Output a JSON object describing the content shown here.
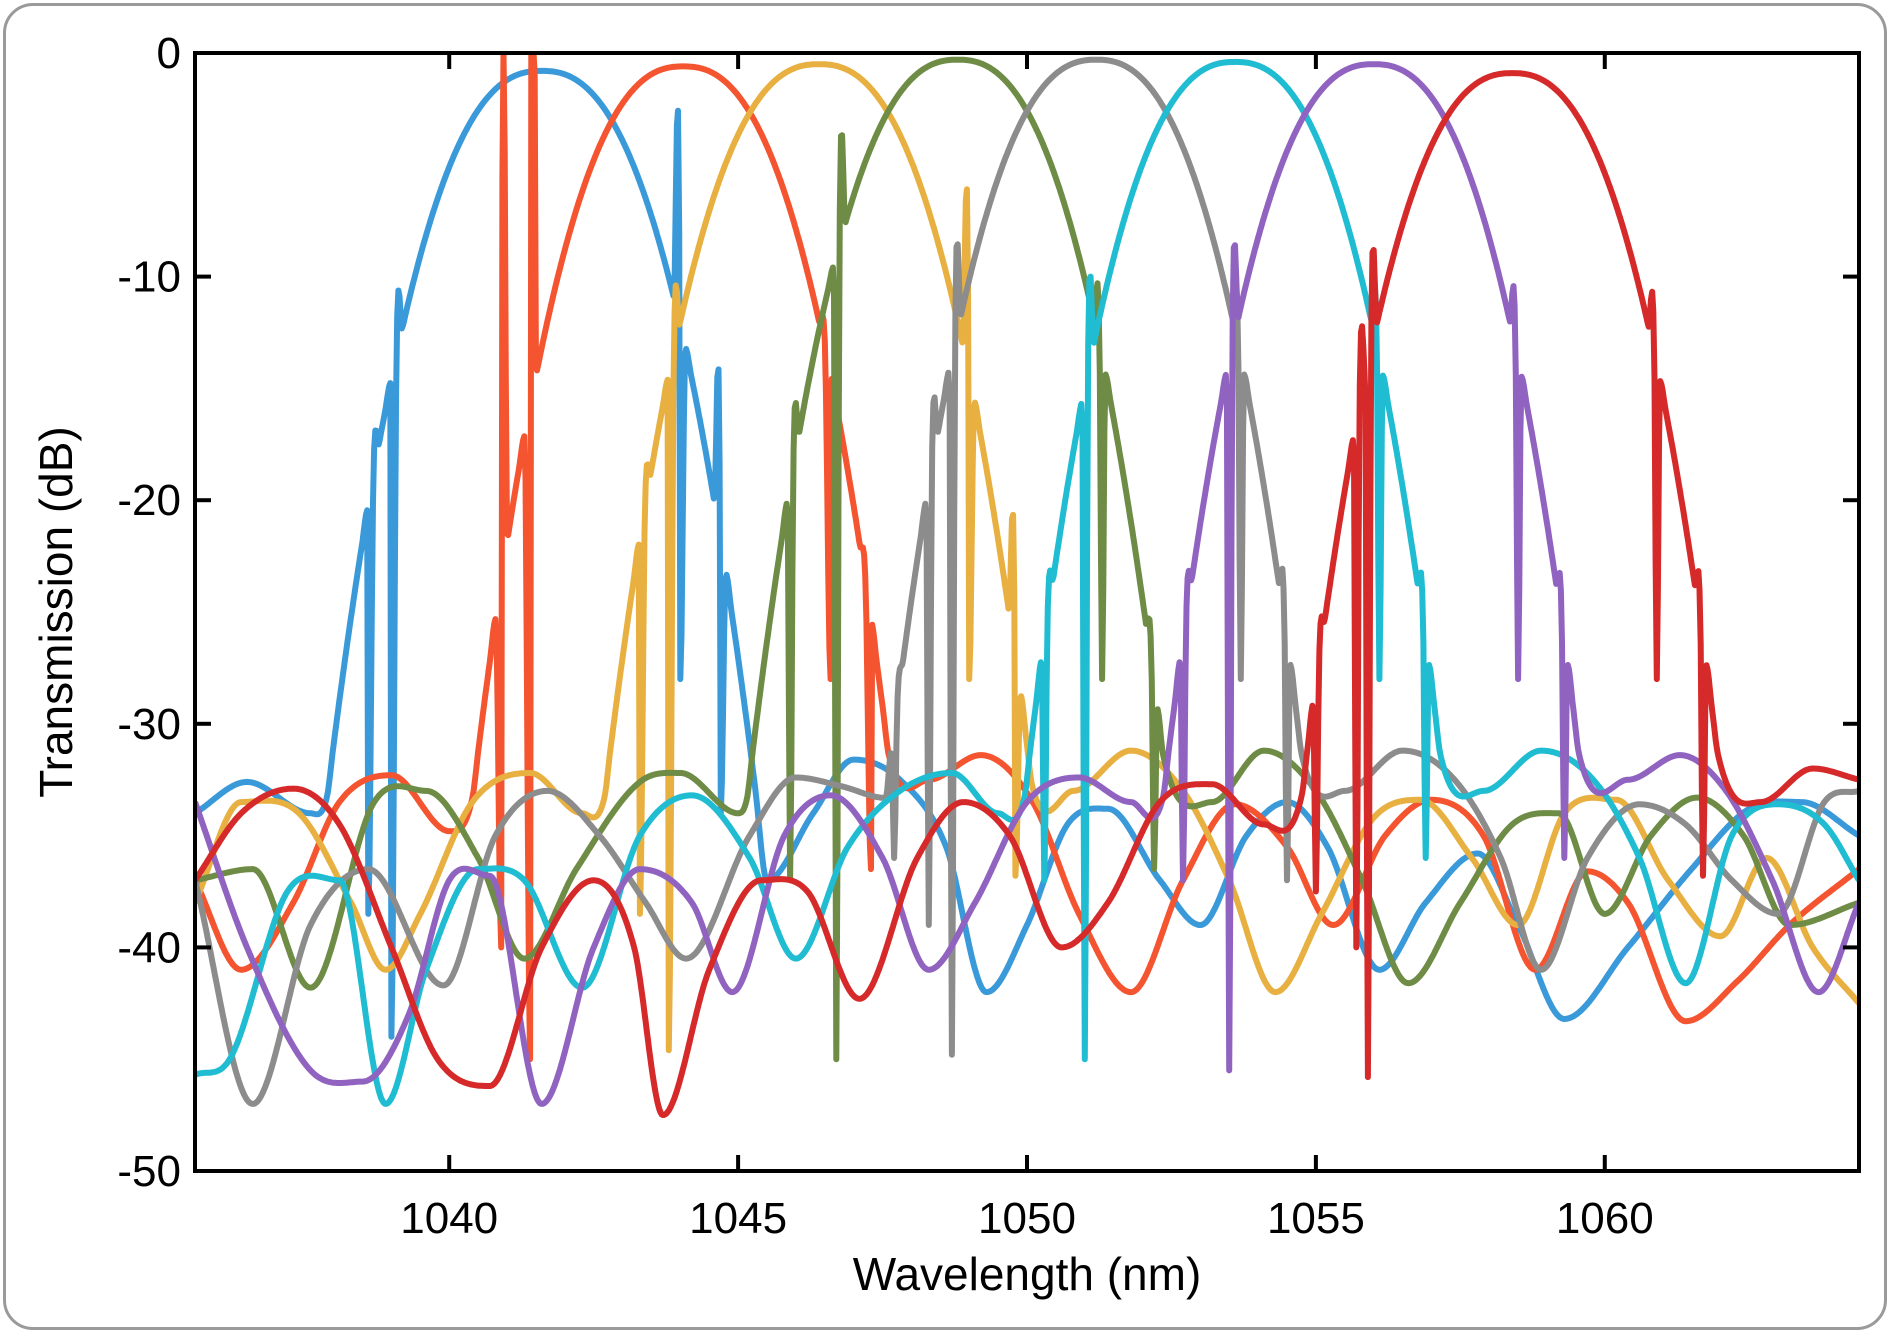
{
  "chart_data": {
    "type": "line",
    "title": "",
    "xlabel": "Wavelength (nm)",
    "ylabel": "Transmission (dB)",
    "xlim": [
      1035.6,
      1064.4
    ],
    "ylim": [
      -50,
      0
    ],
    "xticks": [
      1040,
      1045,
      1050,
      1055,
      1060
    ],
    "yticks": [
      0,
      -10,
      -20,
      -30,
      -40,
      -50
    ],
    "grid": false,
    "legend": "none",
    "series": [
      {
        "color": "#3a9ad9",
        "center": 1041.6,
        "peak": -0.8,
        "halfwidth": 2.75,
        "sidelobes": [
          [
            1035.6,
            -34
          ],
          [
            1036.5,
            -32.6
          ],
          [
            1037.6,
            -34
          ],
          [
            1038.6,
            -38.5
          ],
          [
            1039.0,
            -44
          ]
        ],
        "tail": [
          [
            1044.0,
            -28
          ],
          [
            1044.7,
            -34
          ],
          [
            1045.5,
            -37
          ],
          [
            1046.3,
            -34
          ],
          [
            1047.0,
            -31.6
          ],
          [
            1047.8,
            -32.5
          ],
          [
            1048.6,
            -35.5
          ],
          [
            1049.3,
            -42
          ],
          [
            1050.0,
            -39
          ],
          [
            1050.7,
            -34.5
          ],
          [
            1051.4,
            -33.8
          ],
          [
            1052.3,
            -37
          ],
          [
            1053.0,
            -39
          ],
          [
            1053.8,
            -35
          ],
          [
            1054.5,
            -33.5
          ],
          [
            1055.2,
            -35.5
          ],
          [
            1056.1,
            -41
          ],
          [
            1056.9,
            -38
          ],
          [
            1057.8,
            -35.8
          ],
          [
            1058.5,
            -39
          ],
          [
            1059.3,
            -43.2
          ],
          [
            1060.4,
            -40
          ],
          [
            1061.5,
            -36.5
          ],
          [
            1062.5,
            -33.8
          ],
          [
            1063.4,
            -33.5
          ],
          [
            1064.4,
            -35
          ]
        ]
      },
      {
        "color": "#f4542f",
        "center": 1044.05,
        "peak": -0.6,
        "halfwidth": 2.7,
        "sidelobes": [
          [
            1035.6,
            -37
          ],
          [
            1036.4,
            -41
          ],
          [
            1037.3,
            -38
          ],
          [
            1038.1,
            -33.5
          ],
          [
            1039.0,
            -32.3
          ],
          [
            1040.0,
            -34.8
          ],
          [
            1040.9,
            -40
          ],
          [
            1041.4,
            -45
          ]
        ],
        "tail": [
          [
            1046.6,
            -28
          ],
          [
            1047.3,
            -36.5
          ],
          [
            1048.3,
            -32.5
          ],
          [
            1049.2,
            -31.4
          ],
          [
            1050.1,
            -33.5
          ],
          [
            1050.9,
            -38.5
          ],
          [
            1051.8,
            -42
          ],
          [
            1052.7,
            -37
          ],
          [
            1053.6,
            -33.6
          ],
          [
            1054.5,
            -35.5
          ],
          [
            1055.3,
            -39
          ],
          [
            1056.2,
            -35
          ],
          [
            1057.0,
            -33.4
          ],
          [
            1057.9,
            -35
          ],
          [
            1058.8,
            -41
          ],
          [
            1059.7,
            -36.6
          ],
          [
            1060.4,
            -38
          ],
          [
            1061.4,
            -43.3
          ],
          [
            1062.3,
            -41.5
          ],
          [
            1063.2,
            -39
          ],
          [
            1064.4,
            -36.5
          ]
        ]
      },
      {
        "color": "#e8b040",
        "center": 1046.4,
        "peak": -0.5,
        "halfwidth": 2.75,
        "sidelobes": [
          [
            1035.6,
            -38
          ],
          [
            1036.4,
            -33.5
          ],
          [
            1037.4,
            -34
          ],
          [
            1038.3,
            -38
          ],
          [
            1038.9,
            -41
          ],
          [
            1039.5,
            -38.5
          ],
          [
            1040.4,
            -33.5
          ],
          [
            1041.4,
            -32.2
          ],
          [
            1042.3,
            -34
          ],
          [
            1043.3,
            -38.5
          ],
          [
            1043.8,
            -44.6
          ]
        ],
        "tail": [
          [
            1049.0,
            -28
          ],
          [
            1049.8,
            -36.8
          ],
          [
            1050.8,
            -33
          ],
          [
            1051.8,
            -31.2
          ],
          [
            1052.7,
            -33
          ],
          [
            1053.5,
            -37
          ],
          [
            1054.3,
            -42
          ],
          [
            1055.1,
            -38.5
          ],
          [
            1056.0,
            -34.2
          ],
          [
            1056.8,
            -33.4
          ],
          [
            1057.7,
            -36
          ],
          [
            1058.5,
            -39
          ],
          [
            1059.3,
            -34
          ],
          [
            1060.2,
            -33.4
          ],
          [
            1061.1,
            -37
          ],
          [
            1062.0,
            -39.5
          ],
          [
            1062.8,
            -36
          ],
          [
            1063.6,
            -40
          ],
          [
            1064.4,
            -42.5
          ]
        ]
      },
      {
        "color": "#6e8c45",
        "center": 1048.8,
        "peak": -0.3,
        "halfwidth": 2.7,
        "sidelobes": [
          [
            1035.6,
            -37
          ],
          [
            1036.6,
            -36.5
          ],
          [
            1037.6,
            -41.8
          ],
          [
            1038.7,
            -33.5
          ],
          [
            1039.6,
            -33
          ],
          [
            1040.5,
            -36
          ],
          [
            1041.3,
            -40.5
          ],
          [
            1042.2,
            -36.5
          ],
          [
            1043.3,
            -32.6
          ],
          [
            1044.0,
            -32.2
          ],
          [
            1045.0,
            -34
          ],
          [
            1045.9,
            -37
          ],
          [
            1046.7,
            -45
          ]
        ],
        "tail": [
          [
            1051.3,
            -28
          ],
          [
            1052.2,
            -36.5
          ],
          [
            1053.2,
            -33.5
          ],
          [
            1054.1,
            -31.2
          ],
          [
            1055.0,
            -33
          ],
          [
            1055.8,
            -37
          ],
          [
            1056.6,
            -41.6
          ],
          [
            1057.5,
            -38
          ],
          [
            1058.4,
            -34.5
          ],
          [
            1059.2,
            -34
          ],
          [
            1060.0,
            -38.5
          ],
          [
            1060.8,
            -35
          ],
          [
            1061.6,
            -33.3
          ],
          [
            1062.4,
            -35
          ],
          [
            1063.2,
            -39
          ],
          [
            1064.4,
            -38
          ]
        ]
      },
      {
        "color": "#8c8c8c",
        "center": 1051.2,
        "peak": -0.3,
        "halfwidth": 2.7,
        "sidelobes": [
          [
            1035.6,
            -37
          ],
          [
            1036.6,
            -47
          ],
          [
            1037.6,
            -39
          ],
          [
            1038.6,
            -36.5
          ],
          [
            1039.9,
            -41.7
          ],
          [
            1040.8,
            -35
          ],
          [
            1041.7,
            -33
          ],
          [
            1042.6,
            -35
          ],
          [
            1043.4,
            -38
          ],
          [
            1044.1,
            -40.5
          ],
          [
            1045.2,
            -35
          ],
          [
            1046.0,
            -32.4
          ],
          [
            1046.8,
            -32.8
          ],
          [
            1047.7,
            -36
          ],
          [
            1048.3,
            -39
          ],
          [
            1048.7,
            -44.8
          ]
        ],
        "tail": [
          [
            1053.7,
            -28
          ],
          [
            1054.5,
            -37
          ],
          [
            1055.5,
            -33
          ],
          [
            1056.5,
            -31.2
          ],
          [
            1057.4,
            -32.5
          ],
          [
            1058.2,
            -36
          ],
          [
            1058.9,
            -41
          ],
          [
            1059.7,
            -36
          ],
          [
            1060.6,
            -33.6
          ],
          [
            1061.4,
            -34.5
          ],
          [
            1062.2,
            -37
          ],
          [
            1063.0,
            -38.5
          ],
          [
            1063.8,
            -33.5
          ],
          [
            1064.4,
            -33
          ]
        ]
      },
      {
        "color": "#1fbcd2",
        "center": 1053.6,
        "peak": -0.4,
        "halfwidth": 2.7,
        "sidelobes": [
          [
            1035.6,
            -45.7
          ],
          [
            1036.2,
            -45
          ],
          [
            1037.2,
            -37.5
          ],
          [
            1038.1,
            -37
          ],
          [
            1038.9,
            -47
          ],
          [
            1039.6,
            -41
          ],
          [
            1040.5,
            -36.5
          ],
          [
            1041.3,
            -37
          ],
          [
            1042.3,
            -41.8
          ],
          [
            1043.3,
            -35
          ],
          [
            1044.2,
            -33.2
          ],
          [
            1045.2,
            -36
          ],
          [
            1046.0,
            -40.5
          ],
          [
            1046.9,
            -35.5
          ],
          [
            1047.8,
            -33
          ],
          [
            1048.7,
            -32.2
          ],
          [
            1049.5,
            -34
          ],
          [
            1050.3,
            -37
          ],
          [
            1051.0,
            -45
          ]
        ],
        "tail": [
          [
            1056.1,
            -28
          ],
          [
            1056.9,
            -36
          ],
          [
            1057.9,
            -33
          ],
          [
            1058.9,
            -31.2
          ],
          [
            1059.8,
            -32.5
          ],
          [
            1060.6,
            -36
          ],
          [
            1061.4,
            -41.6
          ],
          [
            1062.2,
            -35
          ],
          [
            1063.0,
            -33.6
          ],
          [
            1063.8,
            -34.5
          ],
          [
            1064.4,
            -37
          ]
        ]
      },
      {
        "color": "#9163c0",
        "center": 1056.0,
        "peak": -0.5,
        "halfwidth": 2.7,
        "sidelobes": [
          [
            1035.6,
            -33.5
          ],
          [
            1036.5,
            -40
          ],
          [
            1037.6,
            -45.5
          ],
          [
            1038.5,
            -46
          ],
          [
            1039.3,
            -43
          ],
          [
            1040.0,
            -37
          ],
          [
            1040.7,
            -36.8
          ],
          [
            1041.6,
            -47
          ],
          [
            1042.5,
            -40
          ],
          [
            1043.3,
            -36.5
          ],
          [
            1044.2,
            -38
          ],
          [
            1044.9,
            -42
          ],
          [
            1045.8,
            -35
          ],
          [
            1046.6,
            -33.2
          ],
          [
            1047.5,
            -36
          ],
          [
            1048.3,
            -41
          ],
          [
            1049.1,
            -38
          ],
          [
            1050.0,
            -33.5
          ],
          [
            1050.9,
            -32.4
          ],
          [
            1051.8,
            -33.5
          ],
          [
            1052.7,
            -37
          ],
          [
            1053.5,
            -45.5
          ]
        ],
        "tail": [
          [
            1058.5,
            -28
          ],
          [
            1059.3,
            -36
          ],
          [
            1060.4,
            -32.5
          ],
          [
            1061.3,
            -31.4
          ],
          [
            1062.1,
            -33
          ],
          [
            1062.9,
            -37
          ],
          [
            1063.7,
            -42
          ],
          [
            1064.4,
            -38
          ]
        ]
      },
      {
        "color": "#d62a2a",
        "center": 1058.4,
        "peak": -0.9,
        "halfwidth": 2.7,
        "sidelobes": [
          [
            1035.6,
            -37
          ],
          [
            1036.4,
            -34
          ],
          [
            1037.3,
            -32.9
          ],
          [
            1038.1,
            -34.5
          ],
          [
            1039.0,
            -40
          ],
          [
            1039.8,
            -45
          ],
          [
            1040.7,
            -46.2
          ],
          [
            1041.6,
            -40
          ],
          [
            1042.5,
            -37
          ],
          [
            1043.2,
            -40
          ],
          [
            1043.7,
            -47.5
          ],
          [
            1044.5,
            -41
          ],
          [
            1045.4,
            -37
          ],
          [
            1046.2,
            -37.5
          ],
          [
            1047.1,
            -42.3
          ],
          [
            1048.1,
            -36
          ],
          [
            1048.9,
            -33.5
          ],
          [
            1049.7,
            -35
          ],
          [
            1050.6,
            -40
          ],
          [
            1051.4,
            -38
          ],
          [
            1052.3,
            -33.5
          ],
          [
            1053.2,
            -32.7
          ],
          [
            1054.1,
            -34.5
          ],
          [
            1055.0,
            -37.5
          ],
          [
            1055.7,
            -40
          ],
          [
            1055.9,
            -45.8
          ]
        ],
        "tail": [
          [
            1060.9,
            -28
          ],
          [
            1061.7,
            -36.8
          ],
          [
            1062.7,
            -33.5
          ],
          [
            1063.6,
            -32
          ],
          [
            1064.4,
            -32.5
          ]
        ]
      }
    ]
  }
}
